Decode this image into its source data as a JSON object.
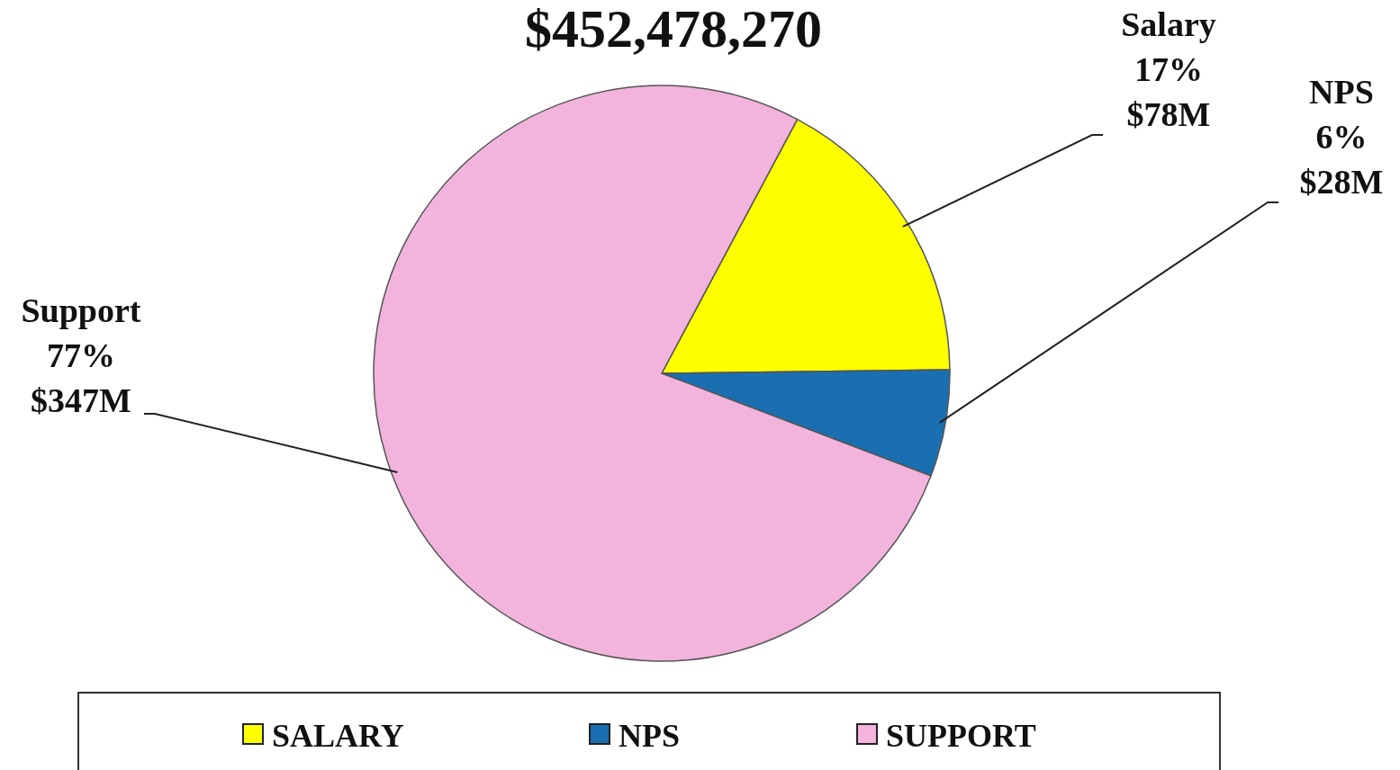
{
  "chart_data": {
    "type": "pie",
    "title": "$452,478,270",
    "categories": [
      "SALARY",
      "NPS",
      "SUPPORT"
    ],
    "values": [
      17,
      6,
      77
    ],
    "colors": [
      "#ffff00",
      "#1a6fb0",
      "#f2b3dc"
    ],
    "value_labels": [
      "Salary\n17%\n$78M",
      "NPS\n6%\n$28M",
      "Support\n77%\n$347M"
    ],
    "legend": "bottom"
  }
}
